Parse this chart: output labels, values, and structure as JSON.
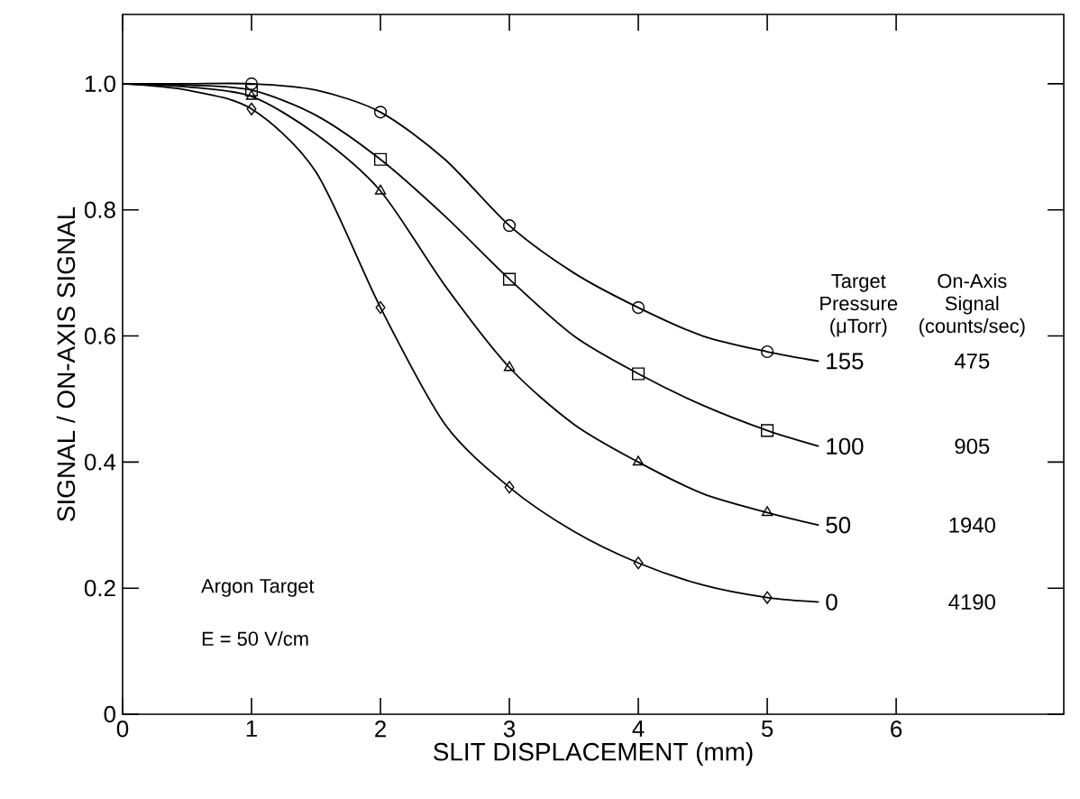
{
  "chart_data": {
    "type": "line",
    "xlabel": "SLIT DISPLACEMENT (mm)",
    "ylabel": "SIGNAL / ON-AXIS SIGNAL",
    "xlim": [
      0,
      7.3
    ],
    "ylim": [
      0,
      1.11
    ],
    "xticks": [
      0,
      1,
      2,
      3,
      4,
      5,
      6
    ],
    "yticks": [
      0,
      0.2,
      0.4,
      0.6,
      0.8,
      {
        "value": 1.0,
        "label": "1.0"
      }
    ],
    "grid": false,
    "line_style": "solid",
    "series": [
      {
        "name": "155",
        "color": "#000000",
        "x": [
          0,
          0.5,
          1,
          1.5,
          2,
          2.5,
          3,
          3.5,
          4,
          4.5,
          5,
          5.4
        ],
        "values": [
          1.0,
          1.0,
          1.0,
          0.99,
          0.955,
          0.88,
          0.775,
          0.7,
          0.645,
          0.6,
          0.575,
          0.56
        ]
      },
      {
        "name": "100",
        "color": "#000000",
        "x": [
          0,
          0.5,
          1,
          1.5,
          2,
          2.5,
          3,
          3.5,
          4,
          4.5,
          5,
          5.4
        ],
        "values": [
          1.0,
          0.998,
          0.99,
          0.95,
          0.88,
          0.79,
          0.69,
          0.6,
          0.54,
          0.49,
          0.45,
          0.425
        ]
      },
      {
        "name": "50",
        "color": "#000000",
        "x": [
          0,
          0.5,
          1,
          1.5,
          2,
          2.5,
          3,
          3.5,
          4,
          4.5,
          5,
          5.4
        ],
        "values": [
          1.0,
          0.995,
          0.98,
          0.92,
          0.83,
          0.68,
          0.55,
          0.46,
          0.4,
          0.35,
          0.32,
          0.3
        ]
      },
      {
        "name": "0",
        "color": "#000000",
        "x": [
          0,
          0.5,
          1,
          1.5,
          2,
          2.5,
          3,
          3.5,
          4,
          4.5,
          5,
          5.4
        ],
        "values": [
          1.0,
          0.99,
          0.96,
          0.86,
          0.645,
          0.46,
          0.36,
          0.29,
          0.24,
          0.205,
          0.185,
          0.178
        ]
      },
      {
        "type": "scatter",
        "marker": "circle",
        "color": "#000000",
        "x": [
          1,
          2,
          3,
          4,
          5
        ],
        "values": [
          1.0,
          0.955,
          0.775,
          0.645,
          0.575
        ]
      },
      {
        "type": "scatter",
        "marker": "square",
        "color": "#000000",
        "x": [
          1,
          2,
          3,
          4,
          5
        ],
        "values": [
          0.99,
          0.88,
          0.69,
          0.54,
          0.45
        ]
      },
      {
        "type": "scatter",
        "marker": "triangle",
        "color": "#000000",
        "x": [
          1,
          2,
          3,
          4,
          5
        ],
        "values": [
          0.98,
          0.83,
          0.55,
          0.4,
          0.32
        ]
      },
      {
        "type": "scatter",
        "marker": "diamond",
        "color": "#000000",
        "x": [
          1,
          2,
          3,
          4,
          5
        ],
        "values": [
          0.96,
          0.645,
          0.36,
          0.24,
          0.185
        ]
      }
    ],
    "annotations": [
      "Argon Target",
      "E = 50 V/cm",
      "Target Pressure (μTorr)",
      "On-Axis Signal (counts/sec)",
      "475",
      "905",
      "1940",
      "4190"
    ]
  }
}
